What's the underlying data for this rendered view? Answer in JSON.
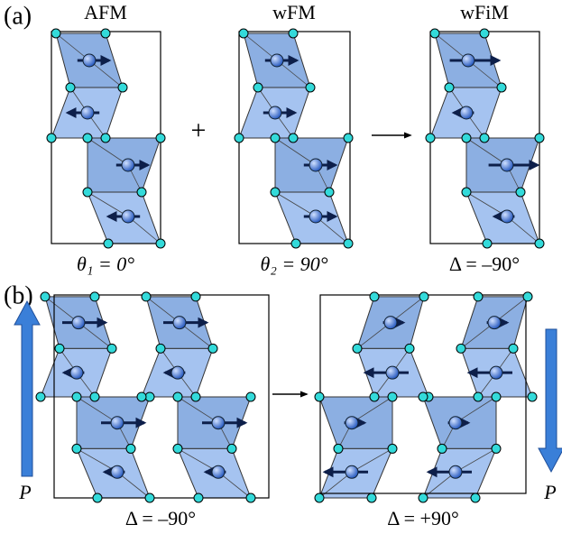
{
  "panel_a": {
    "label": "(a)",
    "titles": [
      "AFM",
      "wFM",
      "wFiM"
    ],
    "plus": "+",
    "captions": [
      "θ₁ = 0°",
      "θ₂ = 90°",
      "Δ = –90°"
    ]
  },
  "panel_b": {
    "label": "(b)",
    "polarization": [
      "P",
      "P"
    ],
    "captions": [
      "Δ = –90°",
      "Δ = +90°"
    ]
  }
}
